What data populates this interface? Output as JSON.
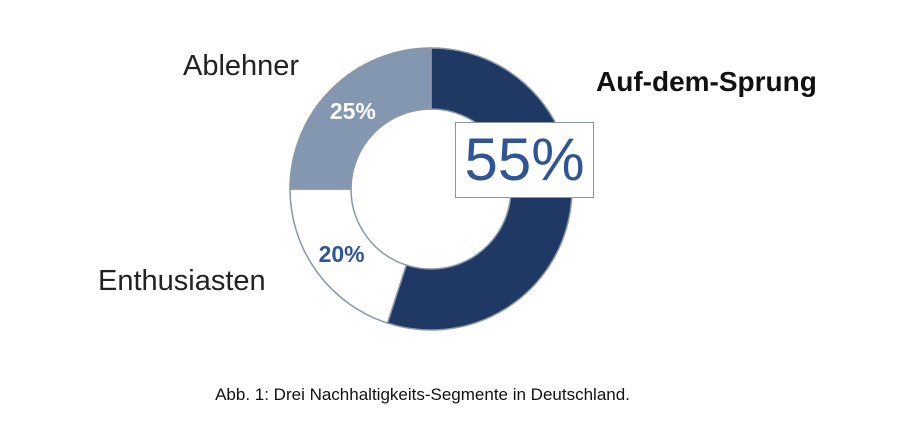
{
  "chart_data": {
    "type": "pie",
    "donut": true,
    "categories": [
      "Auf-dem-Sprung",
      "Enthusiasten",
      "Ablehner"
    ],
    "values": [
      55,
      20,
      25
    ],
    "data_labels": [
      "55%",
      "20%",
      "25%"
    ],
    "colors": [
      "#1f3864",
      "#ffffff",
      "#8497b0"
    ],
    "label_colors": [
      "#2f5597",
      "#2f5597",
      "#ffffff"
    ],
    "start": "top, clockwise",
    "caption": "Abb. 1: Drei Nachhaltigkeits-Segmente in Deutschland."
  }
}
